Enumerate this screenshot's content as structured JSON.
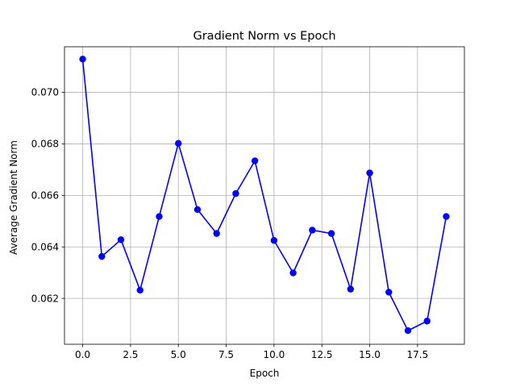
{
  "chart_data": {
    "type": "line",
    "title": "Gradient Norm vs Epoch",
    "xlabel": "Epoch",
    "ylabel": "Average Gradient Norm",
    "xlim": [
      -0.95,
      19.95
    ],
    "ylim": [
      0.06022,
      0.07177
    ],
    "xticks": [
      0.0,
      2.5,
      5.0,
      7.5,
      10.0,
      12.5,
      15.0,
      17.5
    ],
    "xtick_labels": [
      "0.0",
      "2.5",
      "5.0",
      "7.5",
      "10.0",
      "12.5",
      "15.0",
      "17.5"
    ],
    "yticks": [
      0.062,
      0.064,
      0.066,
      0.068,
      0.07
    ],
    "ytick_labels": [
      "0.062",
      "0.064",
      "0.066",
      "0.068",
      "0.070"
    ],
    "grid": true,
    "legend": false,
    "series": [
      {
        "color": "#0000ff",
        "marker": "circle",
        "x": [
          0,
          1,
          2,
          3,
          4,
          5,
          6,
          7,
          8,
          9,
          10,
          11,
          12,
          13,
          14,
          15,
          16,
          17,
          18,
          19
        ],
        "y": [
          0.07129,
          0.06363,
          0.06428,
          0.06232,
          0.06518,
          0.06802,
          0.06545,
          0.06452,
          0.06607,
          0.06734,
          0.06425,
          0.06299,
          0.06465,
          0.06452,
          0.06236,
          0.06687,
          0.06224,
          0.06075,
          0.06112,
          0.06518
        ]
      }
    ]
  }
}
